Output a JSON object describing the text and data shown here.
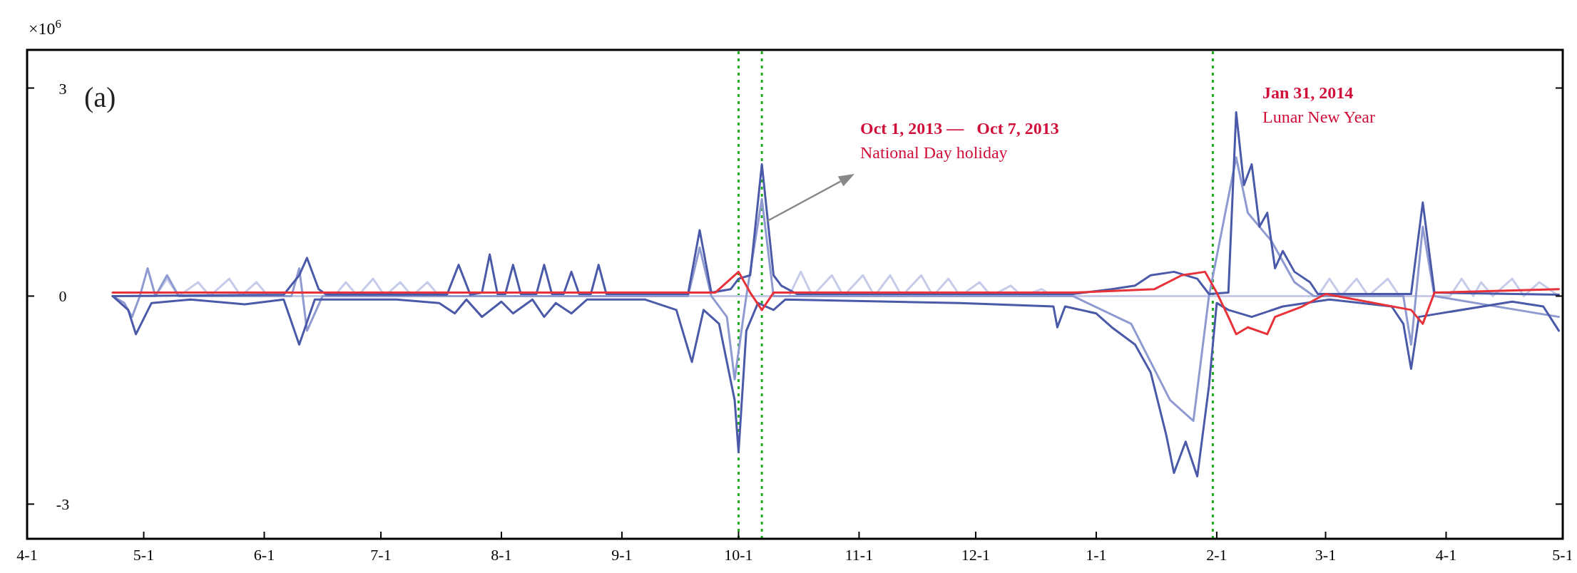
{
  "chart_data": {
    "type": "line",
    "ylabel": "×10$^{6}$",
    "xlim": [
      "2013-04-01",
      "2014-05-01"
    ],
    "xticks": [
      {
        "value": "2013-04-01",
        "label": "4-1"
      },
      {
        "value": "2013-05-01",
        "label": "5-1"
      },
      {
        "value": "2013-06-01",
        "label": "6-1"
      },
      {
        "value": "2013-07-01",
        "label": "7-1"
      },
      {
        "value": "2013-08-01",
        "label": "8-1"
      },
      {
        "value": "2013-09-01",
        "label": "9-1"
      },
      {
        "value": "2013-10-01",
        "label": "10-1"
      },
      {
        "value": "2013-11-01",
        "label": "11-1"
      },
      {
        "value": "2013-12-01",
        "label": "12-1"
      },
      {
        "value": "2014-01-01",
        "label": "1-1"
      },
      {
        "value": "2014-02-01",
        "label": "2-1"
      },
      {
        "value": "2014-03-01",
        "label": "3-1"
      },
      {
        "value": "2014-04-01",
        "label": "4-1"
      },
      {
        "value": "2014-05-01",
        "label": "5-1"
      }
    ],
    "ylim": [
      -3.5,
      3.55
    ],
    "yticks": [
      -3,
      0,
      3
    ],
    "grid": false,
    "marker": "none",
    "line_style": "solid",
    "series": [
      {
        "color": "#c5cbe8",
        "x": [
          "2013-04-23",
          "2013-05-04",
          "2013-05-07",
          "2013-05-10",
          "2013-05-15",
          "2013-05-18",
          "2013-05-23",
          "2013-05-26",
          "2013-05-30",
          "2013-06-02",
          "2013-06-19",
          "2013-06-22",
          "2013-06-25",
          "2013-06-29",
          "2013-07-02",
          "2013-07-06",
          "2013-07-09",
          "2013-07-13",
          "2013-07-16",
          "2013-10-14",
          "2013-10-17",
          "2013-10-20",
          "2013-10-25",
          "2013-10-28",
          "2013-11-02",
          "2013-11-05",
          "2013-11-09",
          "2013-11-12",
          "2013-11-17",
          "2013-11-20",
          "2013-11-24",
          "2013-11-27",
          "2013-12-02",
          "2013-12-05",
          "2013-12-10",
          "2013-12-13",
          "2013-12-18",
          "2013-12-21",
          "2014-02-27",
          "2014-03-02",
          "2014-03-05",
          "2014-03-09",
          "2014-03-12",
          "2014-03-17",
          "2014-03-20",
          "2014-04-02",
          "2014-04-05",
          "2014-04-08",
          "2014-04-10",
          "2014-04-13",
          "2014-04-18",
          "2014-04-21",
          "2014-04-25",
          "2014-04-30"
        ],
        "values": [
          0,
          0,
          0.25,
          0,
          0.2,
          0,
          0.25,
          0,
          0.2,
          0,
          0,
          0.2,
          0,
          0.25,
          0,
          0.2,
          0,
          0.2,
          0,
          0,
          0.35,
          0,
          0.3,
          0,
          0.3,
          0,
          0.3,
          0,
          0.3,
          0,
          0.25,
          0,
          0.2,
          0,
          0.15,
          0,
          0.1,
          0,
          0,
          0.25,
          0,
          0.25,
          0,
          0.25,
          0,
          0,
          0.25,
          0,
          0.2,
          0,
          0.25,
          0,
          0.2,
          0
        ]
      },
      {
        "color": "#8e9ad0",
        "x": [
          "2013-04-23",
          "2013-04-26",
          "2013-04-28",
          "2013-04-30",
          "2013-05-02",
          "2013-05-04",
          "2013-05-07",
          "2013-05-10",
          "2013-06-08",
          "2013-06-10",
          "2013-06-12",
          "2013-06-16",
          "2013-09-18",
          "2013-09-21",
          "2013-09-24",
          "2013-09-28",
          "2013-09-30",
          "2013-10-03",
          "2013-10-07",
          "2013-10-10",
          "2013-12-26",
          "2014-01-10",
          "2014-01-20",
          "2014-01-26",
          "2014-01-30",
          "2014-02-06",
          "2014-02-09",
          "2014-02-15",
          "2014-02-21",
          "2014-02-26",
          "2014-03-21",
          "2014-03-23",
          "2014-03-26",
          "2014-03-29",
          "2014-04-30"
        ],
        "values": [
          0,
          -0.1,
          -0.3,
          0,
          0.4,
          0,
          0.3,
          0,
          0,
          0.4,
          -0.5,
          0,
          0,
          0.7,
          0,
          -0.3,
          -1.2,
          0,
          1.4,
          0,
          0,
          -0.4,
          -1.5,
          -1.8,
          0,
          2.0,
          1.2,
          0.8,
          0.2,
          0,
          0,
          -0.7,
          1.0,
          0,
          -0.3
        ]
      },
      {
        "color": "#4a5aa8",
        "x": [
          "2013-04-23",
          "2013-06-06",
          "2013-06-10",
          "2013-06-12",
          "2013-06-15",
          "2013-06-17",
          "2013-07-18",
          "2013-07-21",
          "2013-07-24",
          "2013-07-27",
          "2013-07-29",
          "2013-07-31",
          "2013-08-02",
          "2013-08-04",
          "2013-08-06",
          "2013-08-10",
          "2013-08-12",
          "2013-08-14",
          "2013-08-17",
          "2013-08-19",
          "2013-08-21",
          "2013-08-24",
          "2013-08-26",
          "2013-08-28",
          "2013-09-18",
          "2013-09-21",
          "2013-09-24",
          "2013-09-29",
          "2013-10-01",
          "2013-10-04",
          "2013-10-07",
          "2013-10-10",
          "2013-10-12",
          "2013-10-16",
          "2013-12-26",
          "2014-01-05",
          "2014-01-11",
          "2014-01-15",
          "2014-01-21",
          "2014-01-27",
          "2014-01-30",
          "2014-02-04",
          "2014-02-06",
          "2014-02-08",
          "2014-02-10",
          "2014-02-12",
          "2014-02-14",
          "2014-02-16",
          "2014-02-18",
          "2014-02-21",
          "2014-02-25",
          "2014-02-27",
          "2014-03-23",
          "2014-03-26",
          "2014-03-29",
          "2014-04-30"
        ],
        "values": [
          0,
          0.02,
          0.3,
          0.55,
          0.1,
          0.02,
          0.02,
          0.45,
          0.02,
          0.05,
          0.6,
          0.03,
          0.03,
          0.45,
          0.03,
          0.03,
          0.45,
          0.03,
          0.03,
          0.35,
          0.03,
          0.03,
          0.45,
          0.03,
          0.03,
          0.95,
          0.05,
          0.1,
          0.25,
          0.3,
          1.9,
          0.3,
          0.15,
          0.03,
          0.03,
          0.1,
          0.15,
          0.3,
          0.35,
          0.25,
          0.03,
          0.05,
          2.65,
          1.6,
          1.9,
          1.0,
          1.2,
          0.4,
          0.65,
          0.35,
          0.2,
          0.03,
          0.03,
          1.35,
          0.05,
          0.02
        ]
      },
      {
        "color": "#4a5aa8",
        "x": [
          "2013-04-23",
          "2013-04-27",
          "2013-04-29",
          "2013-05-03",
          "2013-05-13",
          "2013-05-27",
          "2013-06-06",
          "2013-06-10",
          "2013-06-14",
          "2013-07-05",
          "2013-07-16",
          "2013-07-20",
          "2013-07-23",
          "2013-07-27",
          "2013-08-01",
          "2013-08-04",
          "2013-08-09",
          "2013-08-12",
          "2013-08-15",
          "2013-08-19",
          "2013-08-23",
          "2013-09-07",
          "2013-09-15",
          "2013-09-19",
          "2013-09-22",
          "2013-09-26",
          "2013-09-30",
          "2013-10-01",
          "2013-10-03",
          "2013-10-06",
          "2013-10-10",
          "2013-10-13",
          "2013-11-27",
          "2013-12-21",
          "2013-12-22",
          "2013-12-24",
          "2014-01-01",
          "2014-01-05",
          "2014-01-11",
          "2014-01-15",
          "2014-01-19",
          "2014-01-21",
          "2014-01-24",
          "2014-01-27",
          "2014-01-30",
          "2014-02-01",
          "2014-02-04",
          "2014-02-10",
          "2014-02-18",
          "2014-03-02",
          "2014-03-18",
          "2014-03-21",
          "2014-03-23",
          "2014-03-25",
          "2014-04-18",
          "2014-04-26",
          "2014-04-30"
        ],
        "values": [
          0,
          -0.2,
          -0.55,
          -0.1,
          -0.05,
          -0.12,
          -0.05,
          -0.7,
          -0.05,
          -0.05,
          -0.1,
          -0.25,
          -0.05,
          -0.3,
          -0.08,
          -0.25,
          -0.05,
          -0.3,
          -0.1,
          -0.25,
          -0.05,
          -0.05,
          -0.2,
          -0.95,
          -0.2,
          -0.4,
          -1.5,
          -2.25,
          -0.5,
          -0.1,
          -0.2,
          -0.05,
          -0.1,
          -0.15,
          -0.45,
          -0.15,
          -0.25,
          -0.45,
          -0.7,
          -1.1,
          -2.0,
          -2.55,
          -2.1,
          -2.6,
          -1.3,
          -0.1,
          -0.2,
          -0.3,
          -0.15,
          -0.05,
          -0.15,
          -0.4,
          -1.05,
          -0.3,
          -0.08,
          -0.15,
          -0.5
        ]
      },
      {
        "color": "#e8323a",
        "x": [
          "2013-04-23",
          "2013-09-25",
          "2013-10-01",
          "2013-10-04",
          "2013-10-07",
          "2013-10-10",
          "2013-12-26",
          "2014-01-16",
          "2014-01-23",
          "2014-01-29",
          "2014-02-01",
          "2014-02-04",
          "2014-02-06",
          "2014-02-09",
          "2014-02-14",
          "2014-02-16",
          "2014-02-23",
          "2014-03-01",
          "2014-03-23",
          "2014-03-26",
          "2014-03-29",
          "2014-04-30"
        ],
        "values": [
          0.05,
          0.05,
          0.35,
          0.05,
          -0.2,
          0.05,
          0.05,
          0.1,
          0.3,
          0.35,
          0.05,
          -0.3,
          -0.55,
          -0.45,
          -0.55,
          -0.3,
          -0.15,
          0.03,
          -0.2,
          -0.4,
          0.05,
          0.1
        ]
      }
    ],
    "ref_lines": [
      {
        "axis": "x",
        "value": "2013-10-01",
        "color": "#22aa22",
        "line_style": "dotted"
      },
      {
        "axis": "x",
        "value": "2013-10-07",
        "color": "#22aa22",
        "line_style": "dotted"
      },
      {
        "axis": "x",
        "value": "2014-01-31",
        "color": "#22aa22",
        "line_style": "dotted"
      }
    ],
    "annotations": [
      "(a)",
      "Oct 1, 2013 —   Oct 7, 2013",
      "National Day holiday",
      "Jan 31, 2014",
      "Lunar New Year"
    ]
  }
}
